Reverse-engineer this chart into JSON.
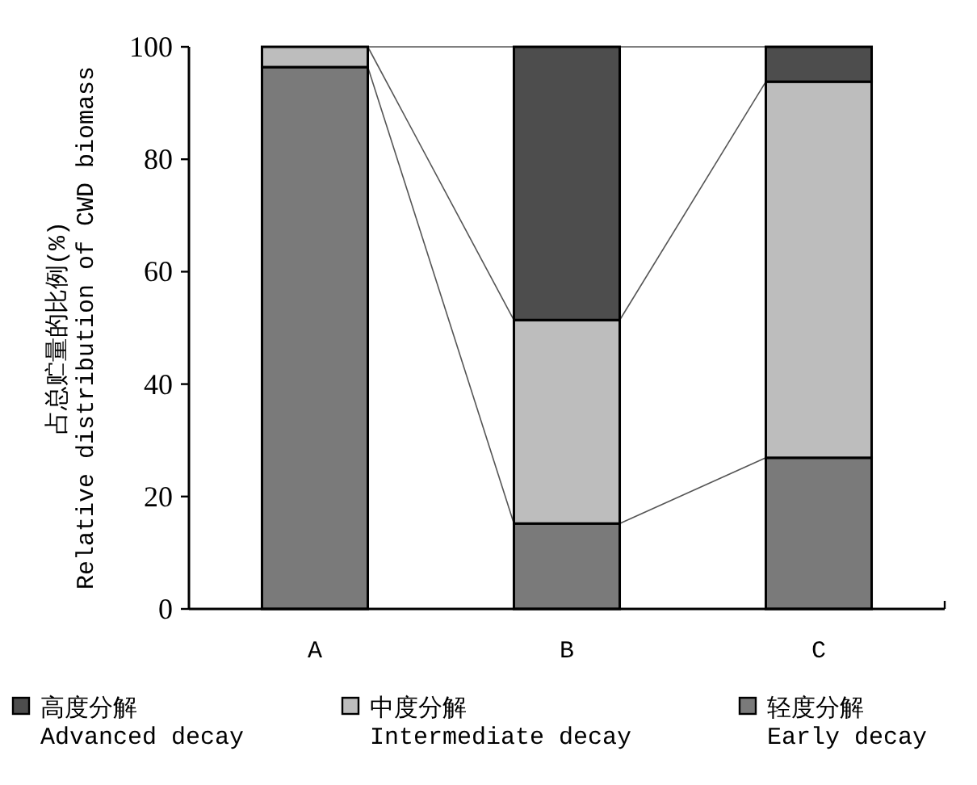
{
  "chart_data": {
    "type": "bar",
    "stacked": true,
    "categories": [
      "A",
      "B",
      "C"
    ],
    "ylabel": "占总贮量的比例(%)\nRelative distribution of CWD biomass",
    "ylim": [
      0,
      100
    ],
    "yticks": [
      0,
      20,
      40,
      60,
      80,
      100
    ],
    "legend": "bottom",
    "grid": false,
    "series": [
      {
        "name": "轻度分解\nEarly decay",
        "color": "#7a7a7a",
        "values": [
          96.4,
          15.2,
          26.9
        ]
      },
      {
        "name": "中度分解\nIntermediate decay",
        "color": "#bdbdbd",
        "values": [
          3.6,
          36.2,
          66.9
        ]
      },
      {
        "name": "高度分解\nAdvanced decay",
        "color": "#4d4d4d",
        "values": [
          0,
          48.6,
          6.2
        ]
      }
    ]
  }
}
